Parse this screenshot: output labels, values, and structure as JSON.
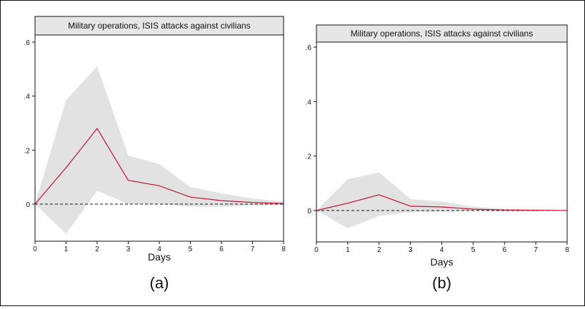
{
  "chart_data": [
    {
      "type": "area",
      "title": "Military operations, ISIS attacks against civilians",
      "xlabel": "Days",
      "caption": "(a)",
      "x": [
        0,
        1,
        2,
        3,
        4,
        5,
        6,
        7,
        8
      ],
      "series": [
        {
          "name": "",
          "kind": "line",
          "values": [
            0,
            0.135,
            0.28,
            0.088,
            0.068,
            0.026,
            0.013,
            0.006,
            0.002
          ]
        },
        {
          "name": "",
          "kind": "band",
          "upper": [
            0,
            0.385,
            0.51,
            0.18,
            0.148,
            0.063,
            0.04,
            0.02,
            0.01
          ],
          "lower": [
            0,
            -0.11,
            0.05,
            0.0,
            0.0,
            -0.01,
            -0.01,
            -0.005,
            -0.002
          ]
        }
      ],
      "reference_line": 0,
      "xticks": [
        "0",
        "1",
        "2",
        "3",
        "4",
        "5",
        "6",
        "7",
        "8"
      ],
      "yticks": [
        "0",
        ".2",
        ".4",
        ".6"
      ],
      "ylim": [
        -0.11,
        0.62
      ],
      "xlim": [
        0,
        8
      ],
      "grid": false
    },
    {
      "type": "area",
      "title": "Military operations, ISIS attacks against civilians",
      "xlabel": "Days",
      "caption": "(b)",
      "x": [
        0,
        1,
        2,
        3,
        4,
        5,
        6,
        7,
        8
      ],
      "series": [
        {
          "name": "",
          "kind": "line",
          "values": [
            0,
            0.027,
            0.058,
            0.016,
            0.013,
            0.005,
            0.002,
            0.001,
            0.0
          ]
        },
        {
          "name": "",
          "kind": "band",
          "upper": [
            0,
            0.115,
            0.14,
            0.042,
            0.033,
            0.014,
            0.006,
            0.003,
            0.001
          ],
          "lower": [
            0,
            -0.065,
            -0.02,
            -0.006,
            -0.005,
            -0.002,
            -0.001,
            0.0,
            0.0
          ]
        }
      ],
      "reference_line": 0,
      "xticks": [
        "0",
        "1",
        "2",
        "3",
        "4",
        "5",
        "6",
        "7",
        "8"
      ],
      "yticks": [
        "0",
        ".2",
        ".4",
        ".6"
      ],
      "ylim": [
        -0.11,
        0.62
      ],
      "xlim": [
        0,
        8
      ],
      "grid": false
    }
  ],
  "colors": {
    "line": "#c8102e",
    "band": "#e2e2e2",
    "title_bg": "#e6e6e6"
  }
}
